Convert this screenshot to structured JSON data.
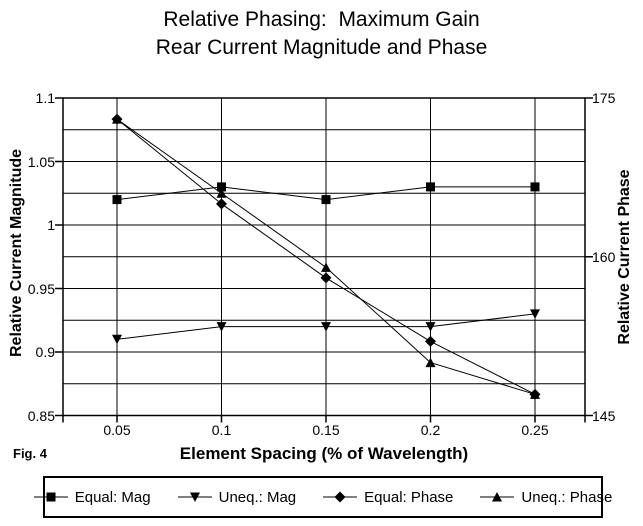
{
  "title": {
    "line1": "Relative Phasing:  Maximum Gain",
    "line2": "Rear Current Magnitude and Phase"
  },
  "fig_label": "Fig. 4",
  "axes": {
    "x": {
      "title": "Element Spacing (% of Wavelength)",
      "tick_labels": [
        "0.05",
        "0.1",
        "0.15",
        "0.2",
        "0.25"
      ]
    },
    "left": {
      "title": "Relative Current Magnitude",
      "tick_labels": [
        "1.1",
        "1.05",
        "1",
        "0.95",
        "0.9",
        "0.85"
      ],
      "tick_values": [
        1.1,
        1.05,
        1,
        0.95,
        0.9,
        0.85
      ]
    },
    "right": {
      "title": "Relative Current Phase",
      "tick_labels": [
        "175",
        "160",
        "145"
      ],
      "tick_values": [
        175,
        160,
        145
      ]
    }
  },
  "legend": {
    "items": [
      {
        "label": "Equal: Mag",
        "marker": "square"
      },
      {
        "label": "Uneq.: Mag",
        "marker": "triangle-down"
      },
      {
        "label": "Equal: Phase",
        "marker": "diamond"
      },
      {
        "label": "Uneq.: Phase",
        "marker": "triangle-up"
      }
    ]
  },
  "colors": {
    "line": "#000000",
    "background": "#ffffff"
  },
  "chart_data": {
    "type": "line",
    "title": "Relative Phasing: Maximum Gain — Rear Current Magnitude and Phase",
    "xlabel": "Element Spacing (% of Wavelength)",
    "ylabel_left": "Relative Current Magnitude",
    "ylabel_right": "Relative Current Phase",
    "x": [
      0.05,
      0.1,
      0.15,
      0.2,
      0.25
    ],
    "ylim_left": [
      0.85,
      1.1
    ],
    "ylim_right": [
      145,
      175
    ],
    "grid_step_left": 0.025,
    "grid": true,
    "legend_position": "bottom",
    "series": [
      {
        "name": "Equal: Mag",
        "axis": "left",
        "marker": "square",
        "values": [
          1.02,
          1.03,
          1.02,
          1.03,
          1.03
        ]
      },
      {
        "name": "Uneq.: Mag",
        "axis": "left",
        "marker": "triangle-down",
        "values": [
          0.91,
          0.92,
          0.92,
          0.92,
          0.93
        ]
      },
      {
        "name": "Equal: Phase",
        "axis": "right",
        "marker": "diamond",
        "values": [
          173,
          165,
          158,
          152,
          147
        ]
      },
      {
        "name": "Uneq.: Phase",
        "axis": "right",
        "marker": "triangle-up",
        "values": [
          173,
          166,
          159,
          150,
          147
        ]
      }
    ]
  }
}
